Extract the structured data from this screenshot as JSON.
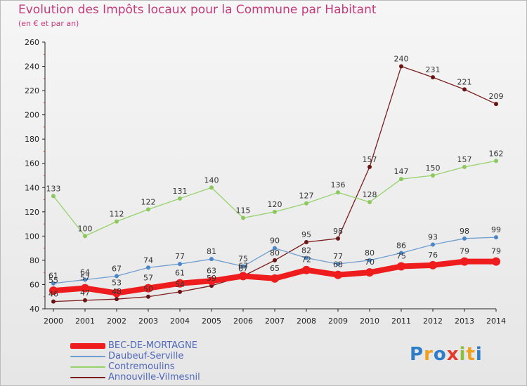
{
  "header": {
    "title": "Evolution des Impôts locaux pour la Commune par Habitant",
    "subtitle": "(en € et par an)"
  },
  "logo": {
    "letters": [
      "P",
      "r",
      "o",
      "x",
      "i",
      "t",
      "i"
    ],
    "colors": [
      "#2e7dc8",
      "#f0a020",
      "#2e7dc8",
      "#e43a2a",
      "#8cbf3f",
      "#f0a020",
      "#2e7dc8"
    ]
  },
  "chart_data": {
    "type": "line",
    "title": "Evolution des Impôts locaux pour la Commune par Habitant",
    "subtitle": "(en € et par an)",
    "xlabel": "",
    "ylabel": "",
    "ylim": [
      40,
      260
    ],
    "yticks": [
      40,
      60,
      80,
      100,
      120,
      140,
      160,
      180,
      200,
      220,
      240,
      260
    ],
    "x": [
      "2000",
      "2001",
      "2002",
      "2003",
      "2004",
      "2005",
      "2006",
      "2007",
      "2008",
      "2009",
      "2010",
      "2011",
      "2012",
      "2013",
      "2014"
    ],
    "grid": false,
    "legend_position": "bottom-left",
    "series": [
      {
        "name": "Annouville-Vilmesnil",
        "color": "#7b1e1e",
        "marker": "#6b1414",
        "width": 1.3,
        "radius": 3,
        "values": [
          46,
          47,
          48,
          50,
          54,
          59,
          67,
          80,
          95,
          98,
          157,
          240,
          231,
          221,
          209
        ]
      },
      {
        "name": "Contremoulins",
        "color": "#96d26a",
        "marker": "#8cc85e",
        "width": 1.3,
        "radius": 3,
        "values": [
          133,
          100,
          112,
          122,
          131,
          140,
          115,
          120,
          127,
          136,
          128,
          147,
          150,
          157,
          162
        ]
      },
      {
        "name": "Daubeuf-Serville",
        "color": "#6f9ed0",
        "marker": "#4a86c8",
        "width": 1.3,
        "radius": 3,
        "values": [
          61,
          64,
          67,
          74,
          77,
          81,
          75,
          90,
          82,
          77,
          80,
          86,
          93,
          98,
          99
        ]
      },
      {
        "name": "BEC-DE-MORTAGNE",
        "color": "#ee1c1c",
        "marker": "#ee1c1c",
        "width": 8,
        "radius": 6,
        "values": [
          55,
          57,
          53,
          57,
          61,
          63,
          67,
          65,
          72,
          68,
          70,
          75,
          76,
          79,
          79
        ]
      }
    ],
    "data_labels": [
      {
        "series": "Annouville-Vilmesnil",
        "labels": [
          "46",
          "47",
          "48",
          "50",
          "54",
          "59",
          "67",
          "80",
          "95",
          "98",
          "157",
          "240",
          "231",
          "221",
          "209"
        ],
        "placement": [
          "above",
          "above",
          "above",
          "above",
          "above",
          "above",
          "above",
          "above",
          "above",
          "above",
          "above",
          "above",
          "above",
          "above",
          "above"
        ]
      },
      {
        "series": "Contremoulins",
        "labels": [
          "133",
          "100",
          "112",
          "122",
          "131",
          "140",
          "115",
          "120",
          "127",
          "136",
          "128",
          "147",
          "150",
          "157",
          "162"
        ],
        "placement": [
          "above",
          "above",
          "above",
          "above",
          "above",
          "above",
          "above",
          "above",
          "above",
          "above",
          "above",
          "above",
          "above",
          "above",
          "above"
        ]
      },
      {
        "series": "Daubeuf-Serville",
        "labels": [
          "61",
          "64",
          "67",
          "74",
          "77",
          "81",
          "75",
          "90",
          "82",
          "77",
          "80",
          "86",
          "93",
          "98",
          "99"
        ],
        "placement": [
          "above",
          "above",
          "above",
          "above",
          "above",
          "above",
          "above",
          "above",
          "above",
          "above",
          "above",
          "above",
          "above",
          "above",
          "above"
        ]
      },
      {
        "series": "BEC-DE-MORTAGNE",
        "labels": [
          "55",
          "57",
          "53",
          "57",
          "61",
          "63",
          "67",
          "65",
          "72",
          "68",
          "70",
          "75",
          "76",
          "79",
          "79"
        ],
        "placement": [
          "above",
          "above",
          "above",
          "above",
          "above",
          "above",
          "above",
          "above",
          "above",
          "above",
          "above",
          "above",
          "above",
          "above",
          "above"
        ]
      }
    ],
    "legend_order": [
      "BEC-DE-MORTAGNE",
      "Daubeuf-Serville",
      "Contremoulins",
      "Annouville-Vilmesnil"
    ]
  }
}
